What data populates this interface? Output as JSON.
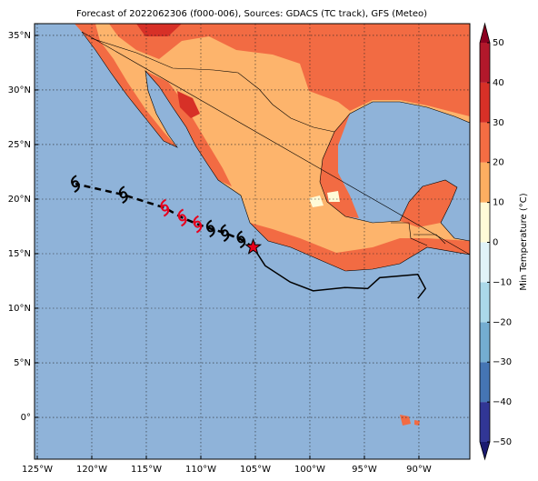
{
  "title": "Forecast of 2022062306 (f000-006), Sources: GDACS (TC track), GFS (Meteo)",
  "map": {
    "xlim": [
      -125.25,
      -85.33
    ],
    "ylim": [
      -3.83,
      36.08
    ],
    "ocean_color": "#8fb3d9",
    "xticks": [
      {
        "value": -125,
        "label": "125°W"
      },
      {
        "value": -120,
        "label": "120°W"
      },
      {
        "value": -115,
        "label": "115°W"
      },
      {
        "value": -110,
        "label": "110°W"
      },
      {
        "value": -105,
        "label": "105°W"
      },
      {
        "value": -100,
        "label": "100°W"
      },
      {
        "value": -95,
        "label": "95°W"
      },
      {
        "value": -90,
        "label": "90°W"
      }
    ],
    "yticks": [
      {
        "value": 0,
        "label": "0°"
      },
      {
        "value": 5,
        "label": "5°N"
      },
      {
        "value": 10,
        "label": "10°N"
      },
      {
        "value": 15,
        "label": "15°N"
      },
      {
        "value": 20,
        "label": "20°N"
      },
      {
        "value": 25,
        "label": "25°N"
      },
      {
        "value": 30,
        "label": "30°N"
      },
      {
        "value": 35,
        "label": "35°N"
      }
    ],
    "grid": true
  },
  "track": {
    "lon": [
      -105.2,
      -104.1,
      -101.8,
      -99.7,
      -96.8,
      -94.7,
      -93.6,
      -90.1,
      -89.4,
      -90.1
    ],
    "lat": [
      15.6,
      13.9,
      12.4,
      11.6,
      11.9,
      11.8,
      12.8,
      13.1,
      11.8,
      10.9
    ],
    "color": "#000000"
  },
  "forecast": {
    "lon": [
      -105.2,
      -106.3,
      -107.8,
      -109.1,
      -110.3,
      -111.7,
      -113.3,
      -117.1,
      -121.5
    ],
    "lat": [
      15.6,
      16.3,
      16.9,
      17.3,
      17.7,
      18.3,
      19.2,
      20.4,
      21.4
    ],
    "symbol_colors": [
      null,
      "#000000",
      "#000000",
      "#000000",
      "#e8001c",
      "#e8001c",
      "#e8001c",
      "#000000",
      "#000000"
    ],
    "marker_color": "#e8001c"
  },
  "colorbar": {
    "label": "Min Temperature (°C)",
    "ticks": [
      {
        "value": -50,
        "label": "−50"
      },
      {
        "value": -40,
        "label": "−40"
      },
      {
        "value": -30,
        "label": "−30"
      },
      {
        "value": -20,
        "label": "−20"
      },
      {
        "value": -10,
        "label": "−10"
      },
      0,
      10,
      20,
      30,
      40,
      50
    ],
    "colors": [
      "#313695",
      "#4575b4",
      "#74add1",
      "#abd9e9",
      "#e0f3f8",
      "#fffbd8",
      "#fdae61",
      "#f46d43",
      "#d73027",
      "#b2182b"
    ],
    "under_color": "#1a1a70",
    "over_color": "#8b0020"
  }
}
